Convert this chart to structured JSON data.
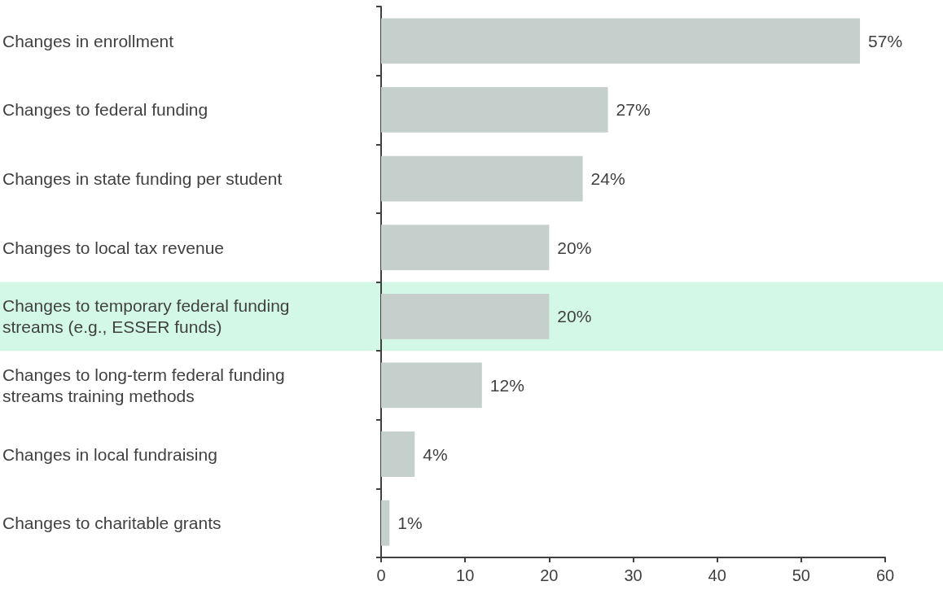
{
  "chart_data": {
    "type": "bar",
    "orientation": "horizontal",
    "categories": [
      "Changes in enrollment",
      "Changes to federal funding",
      "Changes in state funding per student",
      "Changes to local tax revenue",
      "Changes to temporary federal funding streams (e.g., ESSER funds)",
      "Changes to long-term federal funding streams training methods",
      "Changes in local fundraising",
      "Changes to charitable grants"
    ],
    "values": [
      57,
      27,
      24,
      20,
      20,
      12,
      4,
      1
    ],
    "value_labels": [
      "57%",
      "27%",
      "24%",
      "20%",
      "20%",
      "12%",
      "4%",
      "1%"
    ],
    "color": "#c5cfcc",
    "xlim": [
      0,
      60
    ],
    "xticks": [
      0,
      10,
      20,
      30,
      40,
      50,
      60
    ],
    "bands": [
      {
        "axis": "y",
        "from": "Changes to temporary federal funding streams (e.g., ESSER funds)",
        "to": "Changes to temporary federal funding streams (e.g., ESSER funds)",
        "color": "#d3f8e8"
      }
    ],
    "grid": false
  }
}
